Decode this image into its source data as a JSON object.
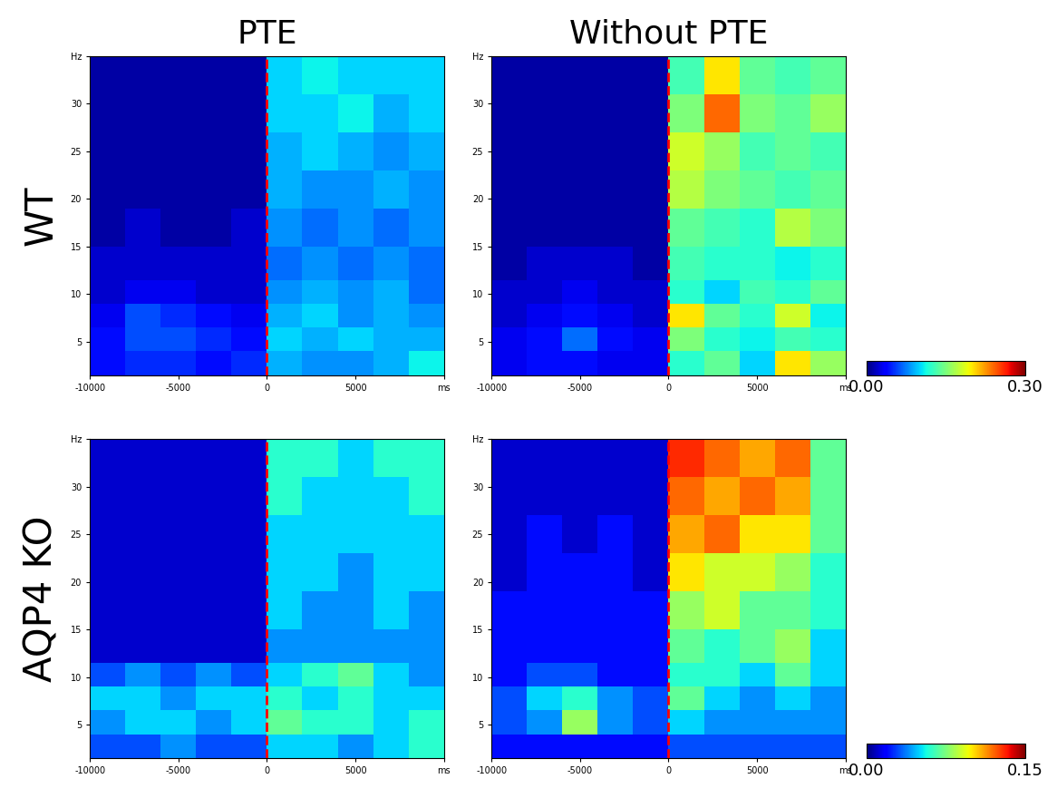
{
  "chart_data": [
    {
      "type": "heatmap",
      "title": "PTE",
      "ylabel": "WT",
      "x_edges": [
        -10000,
        -8000,
        -6000,
        -4000,
        -2000,
        0,
        2000,
        4000,
        6000,
        8000,
        10000
      ],
      "y_edges": [
        1.5,
        4,
        6.5,
        9,
        11.5,
        15,
        19,
        23,
        27,
        31,
        35
      ],
      "xlim": [
        -10000,
        10000
      ],
      "ylim": [
        1.5,
        35
      ],
      "xticks": [
        -10000,
        -5000,
        0,
        5000,
        {
          "value": 10000,
          "label": "ms"
        }
      ],
      "yticks": [
        5,
        10,
        15,
        20,
        25,
        30,
        {
          "value": 35,
          "label": "Hz"
        }
      ],
      "onset_ms": 0,
      "zlim": [
        0,
        0.3
      ],
      "cells": [
        [
          0.04,
          0.05,
          0.05,
          0.04,
          0.05,
          0.09,
          0.08,
          0.08,
          0.09,
          0.11
        ],
        [
          0.04,
          0.06,
          0.06,
          0.05,
          0.04,
          0.1,
          0.09,
          0.1,
          0.09,
          0.09
        ],
        [
          0.03,
          0.06,
          0.05,
          0.04,
          0.03,
          0.09,
          0.1,
          0.08,
          0.09,
          0.08
        ],
        [
          0.02,
          0.03,
          0.03,
          0.02,
          0.02,
          0.08,
          0.09,
          0.08,
          0.09,
          0.07
        ],
        [
          0.02,
          0.02,
          0.02,
          0.02,
          0.02,
          0.07,
          0.08,
          0.07,
          0.08,
          0.07
        ],
        [
          0.01,
          0.02,
          0.01,
          0.01,
          0.02,
          0.08,
          0.07,
          0.08,
          0.07,
          0.08
        ],
        [
          0.01,
          0.01,
          0.01,
          0.01,
          0.01,
          0.09,
          0.08,
          0.08,
          0.09,
          0.08
        ],
        [
          0.01,
          0.01,
          0.01,
          0.01,
          0.01,
          0.09,
          0.1,
          0.09,
          0.08,
          0.09
        ],
        [
          0.01,
          0.01,
          0.01,
          0.01,
          0.01,
          0.1,
          0.1,
          0.11,
          0.09,
          0.1
        ],
        [
          0.01,
          0.01,
          0.01,
          0.01,
          0.01,
          0.1,
          0.11,
          0.1,
          0.1,
          0.1
        ]
      ]
    },
    {
      "type": "heatmap",
      "title": "Without PTE",
      "x_edges": [
        -10000,
        -8000,
        -6000,
        -4000,
        -2000,
        0,
        2000,
        4000,
        6000,
        8000,
        10000
      ],
      "y_edges": [
        1.5,
        4,
        6.5,
        9,
        11.5,
        15,
        19,
        23,
        27,
        31,
        35
      ],
      "xlim": [
        -10000,
        10000
      ],
      "ylim": [
        1.5,
        35
      ],
      "xticks": [
        -10000,
        -5000,
        0,
        5000,
        {
          "value": 10000,
          "label": "ms"
        }
      ],
      "yticks": [
        5,
        10,
        15,
        20,
        25,
        30,
        {
          "value": 35,
          "label": "Hz"
        }
      ],
      "onset_ms": 0,
      "zlim": [
        0,
        0.3
      ],
      "colorbar": {
        "range": [
          0,
          0.3
        ],
        "ticks": [
          {
            "value": 0,
            "label": "0.00"
          },
          {
            "value": 0.3,
            "label": "0.30"
          }
        ]
      },
      "cells": [
        [
          0.03,
          0.04,
          0.04,
          0.03,
          0.03,
          0.12,
          0.14,
          0.1,
          0.2,
          0.16
        ],
        [
          0.03,
          0.04,
          0.07,
          0.04,
          0.03,
          0.15,
          0.12,
          0.11,
          0.13,
          0.12
        ],
        [
          0.02,
          0.03,
          0.04,
          0.03,
          0.02,
          0.2,
          0.14,
          0.12,
          0.18,
          0.11
        ],
        [
          0.02,
          0.02,
          0.03,
          0.02,
          0.02,
          0.12,
          0.1,
          0.13,
          0.12,
          0.14
        ],
        [
          0.01,
          0.02,
          0.02,
          0.02,
          0.01,
          0.13,
          0.12,
          0.12,
          0.11,
          0.12
        ],
        [
          0.01,
          0.01,
          0.01,
          0.01,
          0.01,
          0.14,
          0.13,
          0.12,
          0.17,
          0.15
        ],
        [
          0.01,
          0.01,
          0.01,
          0.01,
          0.01,
          0.17,
          0.15,
          0.14,
          0.13,
          0.14
        ],
        [
          0.01,
          0.01,
          0.01,
          0.01,
          0.01,
          0.18,
          0.16,
          0.13,
          0.14,
          0.13
        ],
        [
          0.01,
          0.01,
          0.01,
          0.01,
          0.01,
          0.15,
          0.24,
          0.15,
          0.14,
          0.16
        ],
        [
          0.01,
          0.01,
          0.01,
          0.01,
          0.01,
          0.13,
          0.2,
          0.14,
          0.13,
          0.14
        ]
      ]
    },
    {
      "type": "heatmap",
      "ylabel": "AQP4 KO",
      "x_edges": [
        -10000,
        -8000,
        -6000,
        -4000,
        -2000,
        0,
        2000,
        4000,
        6000,
        8000,
        10000
      ],
      "y_edges": [
        1.5,
        4,
        6.5,
        9,
        11.5,
        15,
        19,
        23,
        27,
        31,
        35
      ],
      "xlim": [
        -10000,
        10000
      ],
      "ylim": [
        1.5,
        35
      ],
      "xticks": [
        -10000,
        -5000,
        0,
        5000,
        {
          "value": 10000,
          "label": "ms"
        }
      ],
      "yticks": [
        5,
        10,
        15,
        20,
        25,
        30,
        {
          "value": 35,
          "label": "Hz"
        }
      ],
      "onset_ms": 0,
      "zlim": [
        0,
        0.15
      ],
      "cells": [
        [
          0.03,
          0.03,
          0.04,
          0.03,
          0.03,
          0.05,
          0.05,
          0.04,
          0.05,
          0.06
        ],
        [
          0.04,
          0.05,
          0.05,
          0.04,
          0.05,
          0.07,
          0.06,
          0.06,
          0.05,
          0.06
        ],
        [
          0.05,
          0.05,
          0.04,
          0.05,
          0.05,
          0.06,
          0.05,
          0.06,
          0.05,
          0.05
        ],
        [
          0.03,
          0.04,
          0.03,
          0.04,
          0.03,
          0.05,
          0.06,
          0.07,
          0.05,
          0.04
        ],
        [
          0.01,
          0.01,
          0.01,
          0.01,
          0.01,
          0.04,
          0.04,
          0.04,
          0.04,
          0.04
        ],
        [
          0.01,
          0.01,
          0.01,
          0.01,
          0.01,
          0.05,
          0.04,
          0.04,
          0.05,
          0.04
        ],
        [
          0.01,
          0.01,
          0.01,
          0.01,
          0.01,
          0.05,
          0.05,
          0.04,
          0.05,
          0.05
        ],
        [
          0.01,
          0.01,
          0.01,
          0.01,
          0.01,
          0.05,
          0.05,
          0.05,
          0.05,
          0.05
        ],
        [
          0.01,
          0.01,
          0.01,
          0.01,
          0.01,
          0.06,
          0.05,
          0.05,
          0.05,
          0.06
        ],
        [
          0.01,
          0.01,
          0.01,
          0.01,
          0.01,
          0.06,
          0.06,
          0.05,
          0.06,
          0.06
        ]
      ]
    },
    {
      "type": "heatmap",
      "x_edges": [
        -10000,
        -8000,
        -6000,
        -4000,
        -2000,
        0,
        2000,
        4000,
        6000,
        8000,
        10000
      ],
      "y_edges": [
        1.5,
        4,
        6.5,
        9,
        11.5,
        15,
        19,
        23,
        27,
        31,
        35
      ],
      "xlim": [
        -10000,
        10000
      ],
      "ylim": [
        1.5,
        35
      ],
      "xticks": [
        -10000,
        -5000,
        0,
        5000,
        {
          "value": 10000,
          "label": "ms"
        }
      ],
      "yticks": [
        5,
        10,
        15,
        20,
        25,
        30,
        {
          "value": 35,
          "label": "Hz"
        }
      ],
      "onset_ms": 0,
      "zlim": [
        0,
        0.15
      ],
      "colorbar": {
        "range": [
          0,
          0.15
        ],
        "ticks": [
          {
            "value": 0,
            "label": "0.00"
          },
          {
            "value": 0.15,
            "label": "0.15"
          }
        ]
      },
      "cells": [
        [
          0.02,
          0.02,
          0.02,
          0.02,
          0.02,
          0.03,
          0.03,
          0.03,
          0.03,
          0.03
        ],
        [
          0.03,
          0.04,
          0.08,
          0.04,
          0.03,
          0.05,
          0.04,
          0.04,
          0.04,
          0.04
        ],
        [
          0.03,
          0.05,
          0.06,
          0.04,
          0.03,
          0.07,
          0.05,
          0.04,
          0.05,
          0.04
        ],
        [
          0.02,
          0.03,
          0.03,
          0.02,
          0.02,
          0.06,
          0.06,
          0.05,
          0.07,
          0.05
        ],
        [
          0.02,
          0.02,
          0.02,
          0.02,
          0.02,
          0.07,
          0.06,
          0.07,
          0.08,
          0.05
        ],
        [
          0.02,
          0.02,
          0.02,
          0.02,
          0.02,
          0.08,
          0.09,
          0.07,
          0.07,
          0.06
        ],
        [
          0.01,
          0.02,
          0.02,
          0.02,
          0.01,
          0.1,
          0.09,
          0.09,
          0.08,
          0.06
        ],
        [
          0.01,
          0.02,
          0.01,
          0.02,
          0.01,
          0.11,
          0.12,
          0.1,
          0.1,
          0.07
        ],
        [
          0.01,
          0.01,
          0.01,
          0.01,
          0.01,
          0.12,
          0.11,
          0.12,
          0.11,
          0.07
        ],
        [
          0.01,
          0.01,
          0.01,
          0.01,
          0.01,
          0.13,
          0.12,
          0.11,
          0.12,
          0.07
        ]
      ]
    }
  ]
}
